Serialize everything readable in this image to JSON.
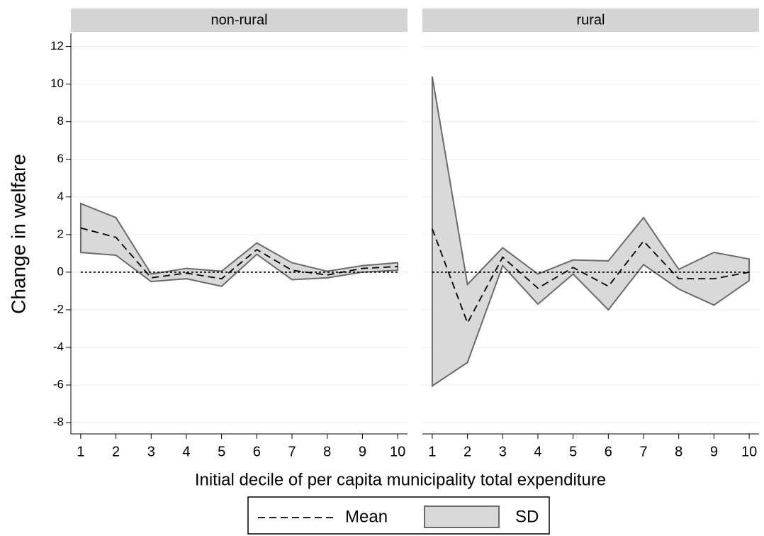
{
  "chart_data": {
    "type": "line",
    "ylabel": "Change in welfare",
    "xlabel": "Initial decile of per capita municipality total expenditure",
    "ylim": [
      -8.6,
      12.7
    ],
    "yticks": [
      -8,
      -6,
      -4,
      -2,
      0,
      2,
      4,
      6,
      8,
      10,
      12
    ],
    "xlim": [
      0.72,
      10.28
    ],
    "xticks": [
      1,
      2,
      3,
      4,
      5,
      6,
      7,
      8,
      9,
      10
    ],
    "refline": 0,
    "grid": true,
    "legend": "bottom",
    "panels": [
      {
        "title": "non-rural",
        "x": [
          1,
          2,
          3,
          4,
          5,
          6,
          7,
          8,
          9,
          10
        ],
        "series": [
          {
            "name": "Mean",
            "color": "#000000",
            "values": [
              2.35,
              1.85,
              -0.3,
              -0.05,
              -0.35,
              1.2,
              0.1,
              -0.15,
              0.2,
              0.3
            ]
          },
          {
            "name": "SD",
            "color": "#d9d9d9",
            "upper": [
              3.65,
              2.9,
              -0.1,
              0.2,
              0.05,
              1.55,
              0.5,
              0.05,
              0.35,
              0.5
            ],
            "lower": [
              1.05,
              0.9,
              -0.5,
              -0.35,
              -0.75,
              0.95,
              -0.4,
              -0.3,
              0,
              0.1
            ]
          }
        ]
      },
      {
        "title": "rural",
        "x": [
          1,
          2,
          3,
          4,
          5,
          6,
          7,
          8,
          9,
          10
        ],
        "series": [
          {
            "name": "Mean",
            "color": "#000000",
            "values": [
              2.3,
              -2.7,
              0.8,
              -0.85,
              0.25,
              -0.75,
              1.65,
              -0.35,
              -0.35,
              0
            ]
          },
          {
            "name": "SD",
            "color": "#d9d9d9",
            "upper": [
              10.4,
              -0.65,
              1.3,
              -0.1,
              0.65,
              0.6,
              2.9,
              0.15,
              1.05,
              0.7
            ],
            "lower": [
              -6.05,
              -4.8,
              0.35,
              -1.7,
              -0.1,
              -2.0,
              0.4,
              -0.9,
              -1.75,
              -0.45
            ]
          }
        ]
      }
    ]
  }
}
